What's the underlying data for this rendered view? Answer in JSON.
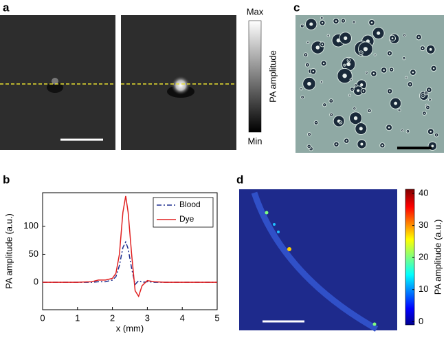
{
  "panels": {
    "a": {
      "label": "a",
      "colorbar_max": "Max",
      "colorbar_min": "Min",
      "colorbar_label": "PA amplitude"
    },
    "c": {
      "label": "c"
    }
  },
  "chart_data": [
    {
      "type": "line",
      "label": "b",
      "xlabel": "x (mm)",
      "ylabel": "PA amplitude (a.u.)",
      "x": [
        0,
        0.5,
        1,
        1.4,
        1.6,
        1.8,
        2.0,
        2.1,
        2.2,
        2.3,
        2.38,
        2.45,
        2.55,
        2.65,
        2.75,
        2.85,
        3.0,
        3.2,
        3.5,
        4,
        4.5,
        5
      ],
      "series": [
        {
          "name": "Blood",
          "color": "#1f2f8f",
          "dash": "7,3,2,3",
          "values": [
            0,
            0,
            0,
            0,
            1,
            1,
            4,
            10,
            30,
            62,
            72,
            60,
            25,
            -4,
            3,
            0,
            1,
            0,
            0,
            0,
            0,
            0
          ]
        },
        {
          "name": "Dye",
          "color": "#e02020",
          "values": [
            0,
            0,
            0,
            1,
            4,
            4,
            7,
            16,
            50,
            125,
            154,
            125,
            50,
            -15,
            -25,
            -6,
            3,
            1,
            0,
            0,
            0,
            0
          ]
        }
      ],
      "xlim": [
        0,
        5
      ],
      "ylim": [
        -49,
        160
      ],
      "xticks": [
        0,
        1,
        2,
        3,
        4,
        5
      ],
      "yticks": [
        0,
        50,
        100
      ],
      "legend": "upper right"
    },
    {
      "type": "heatmap",
      "label": "d",
      "colorbar_label": "PA amplitude (a.u.)",
      "clim": [
        -1,
        41.3
      ],
      "cticks": [
        0,
        10,
        20,
        30,
        40
      ]
    }
  ]
}
